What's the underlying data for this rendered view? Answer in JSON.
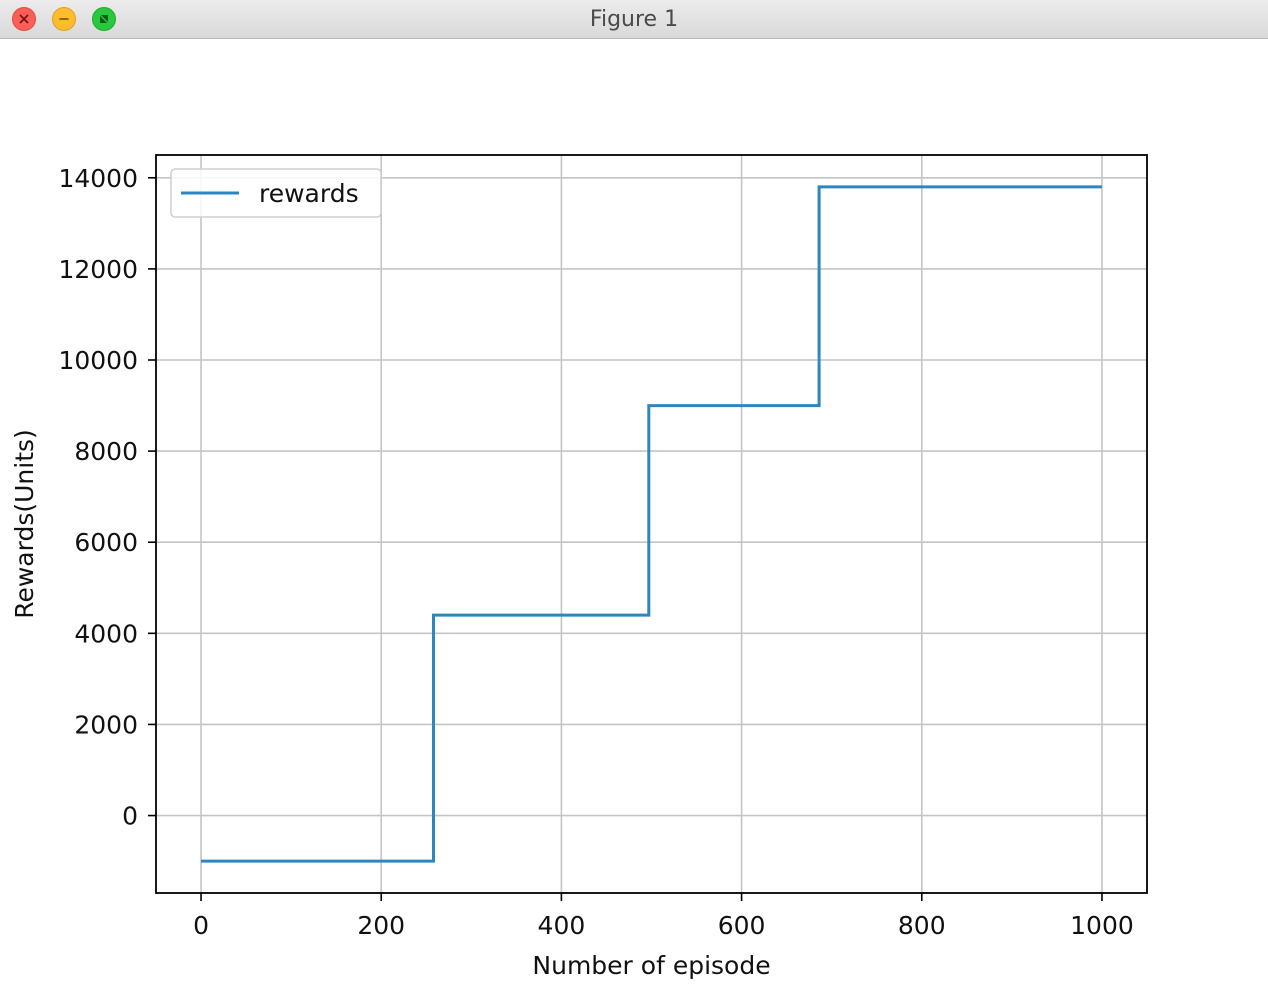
{
  "window": {
    "title": "Figure 1",
    "close_icon": "close-icon",
    "minimize_icon": "minimize-icon",
    "zoom_icon": "zoom-icon"
  },
  "colors": {
    "line": "#2e86c1",
    "grid": "#c4c4c4",
    "axes": "#000000"
  },
  "chart_data": {
    "type": "line",
    "title": "",
    "xlabel": "Number of episode",
    "ylabel": "Rewards(Units)",
    "xlim": [
      -50,
      1050
    ],
    "ylim": [
      -1700,
      14500
    ],
    "xticks": [
      0,
      200,
      400,
      600,
      800,
      1000
    ],
    "yticks": [
      0,
      2000,
      4000,
      6000,
      8000,
      10000,
      12000,
      14000
    ],
    "grid": true,
    "legend_position": "top-left",
    "series": [
      {
        "name": "rewards",
        "color": "#2e86c1",
        "step": true,
        "x": [
          0,
          258,
          258,
          497,
          497,
          686,
          686,
          1000
        ],
        "y": [
          -1000,
          -1000,
          4400,
          4400,
          9000,
          9000,
          13800,
          13800
        ]
      }
    ]
  }
}
